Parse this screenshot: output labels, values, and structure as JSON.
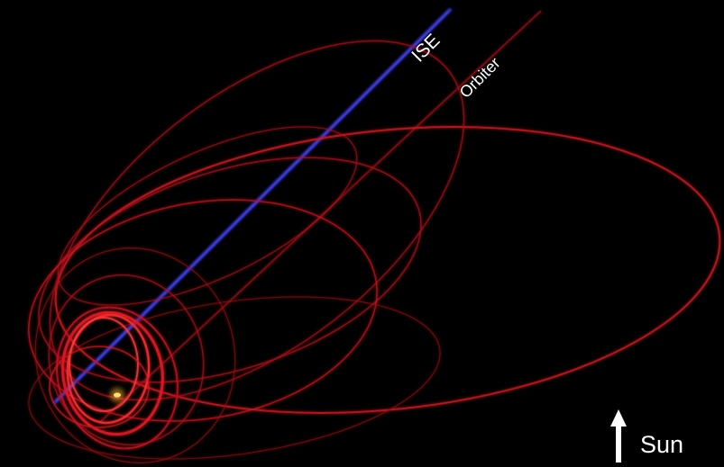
{
  "labels": {
    "ise": "ISE",
    "orbiter": "Orbiter",
    "sun": "Sun"
  },
  "colors": {
    "background": "#000000",
    "orbit": "#c8141e",
    "ise_track": "#2a2ab4",
    "label": "#ffffff",
    "earth": "#ffd24a"
  },
  "icons": {
    "sun_direction": "arrow-up-icon"
  }
}
